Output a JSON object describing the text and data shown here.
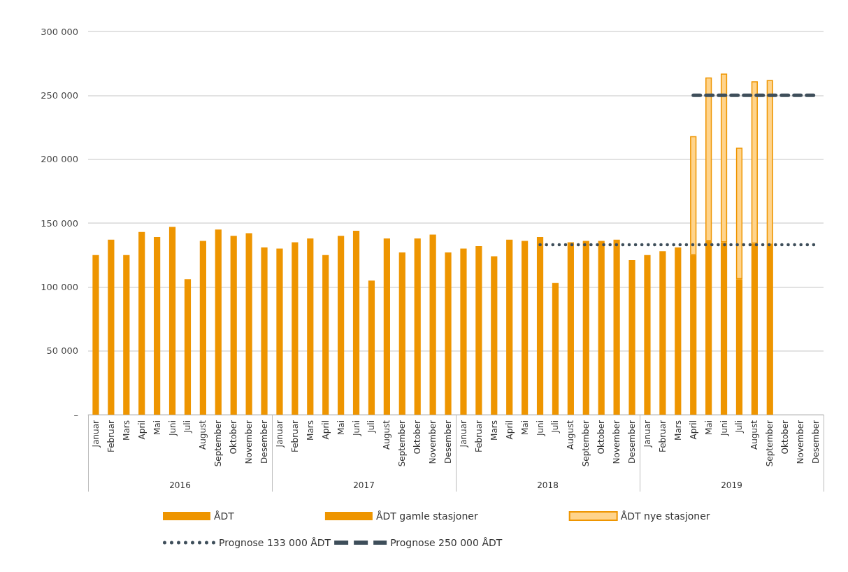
{
  "chart_data": {
    "type": "bar",
    "stacked": true,
    "grid": "y",
    "legend": "bottom",
    "annotations": [
      "2016",
      "2017",
      "2018",
      "2019"
    ],
    "categories": [
      "Januar",
      "Februar",
      "Mars",
      "April",
      "Mai",
      "Juni",
      "Juli",
      "August",
      "September",
      "Oktober",
      "November",
      "Desember",
      "Januar",
      "Februar",
      "Mars",
      "April",
      "Mai",
      "Juni",
      "Juli",
      "August",
      "September",
      "Oktober",
      "November",
      "Desember",
      "Januar",
      "Februar",
      "Mars",
      "April",
      "Mai",
      "Juni",
      "Juli",
      "August",
      "September",
      "Oktober",
      "November",
      "Desember",
      "Januar",
      "Februar",
      "Mars",
      "April",
      "Mai",
      "Juni",
      "Juli",
      "August",
      "September",
      "Oktober",
      "November",
      "Desember"
    ],
    "ylim": [
      0,
      300000
    ],
    "yticks": [
      {
        "value": 0,
        "label": "–"
      },
      {
        "value": 50000,
        "label": "50 000"
      },
      {
        "value": 100000,
        "label": "100 000"
      },
      {
        "value": 150000,
        "label": "150 000"
      },
      {
        "value": 200000,
        "label": "200 000"
      },
      {
        "value": 250000,
        "label": "250 000"
      },
      {
        "value": 300000,
        "label": "300 000"
      }
    ],
    "series": [
      {
        "name": "ÅDT",
        "color": "#ee9500",
        "values": [
          125000,
          137000,
          125000,
          143000,
          139000,
          147000,
          106000,
          136000,
          145000,
          140000,
          142000,
          131000,
          130000,
          135000,
          138000,
          125000,
          140000,
          144000,
          105000,
          138000,
          127000,
          138000,
          141000,
          127000,
          130000,
          132000,
          124000,
          137000,
          136000,
          139000,
          103000,
          135000,
          136000,
          136000,
          137000,
          121000,
          125000,
          128000,
          131000,
          null,
          null,
          null,
          null,
          null,
          null,
          null,
          null,
          null
        ]
      },
      {
        "name": "ÅDT gamle stasjoner",
        "color": "#ee9500",
        "values": [
          null,
          null,
          null,
          null,
          null,
          null,
          null,
          null,
          null,
          null,
          null,
          null,
          null,
          null,
          null,
          null,
          null,
          null,
          null,
          null,
          null,
          null,
          null,
          null,
          null,
          null,
          null,
          null,
          null,
          null,
          null,
          null,
          null,
          null,
          null,
          null,
          null,
          null,
          null,
          125000,
          136000,
          135000,
          106000,
          134000,
          133000,
          null,
          null,
          null
        ]
      },
      {
        "name": "ÅDT nye stasjoner",
        "color": "#ffd48c",
        "values": [
          null,
          null,
          null,
          null,
          null,
          null,
          null,
          null,
          null,
          null,
          null,
          null,
          null,
          null,
          null,
          null,
          null,
          null,
          null,
          null,
          null,
          null,
          null,
          null,
          null,
          null,
          null,
          null,
          null,
          null,
          null,
          null,
          null,
          null,
          null,
          null,
          null,
          null,
          null,
          93000,
          128000,
          132000,
          103000,
          127000,
          129000,
          null,
          null,
          null
        ]
      },
      {
        "name": "Prognose 133 000 ÅDT",
        "type": "line",
        "line_style": "dotted",
        "color": "#3e4e5a",
        "values": [
          null,
          null,
          null,
          null,
          null,
          null,
          null,
          null,
          null,
          null,
          null,
          null,
          null,
          null,
          null,
          null,
          null,
          null,
          null,
          null,
          null,
          null,
          null,
          null,
          null,
          null,
          null,
          null,
          null,
          133000,
          133000,
          133000,
          133000,
          133000,
          133000,
          133000,
          133000,
          133000,
          133000,
          133000,
          133000,
          133000,
          133000,
          133000,
          133000,
          133000,
          133000,
          133000
        ]
      },
      {
        "name": "Prognose 250 000 ÅDT",
        "type": "line",
        "line_style": "dashed",
        "color": "#3e4e5a",
        "values": [
          null,
          null,
          null,
          null,
          null,
          null,
          null,
          null,
          null,
          null,
          null,
          null,
          null,
          null,
          null,
          null,
          null,
          null,
          null,
          null,
          null,
          null,
          null,
          null,
          null,
          null,
          null,
          null,
          null,
          null,
          null,
          null,
          null,
          null,
          null,
          null,
          null,
          null,
          null,
          250000,
          250000,
          250000,
          250000,
          250000,
          250000,
          250000,
          250000,
          250000
        ]
      }
    ]
  }
}
